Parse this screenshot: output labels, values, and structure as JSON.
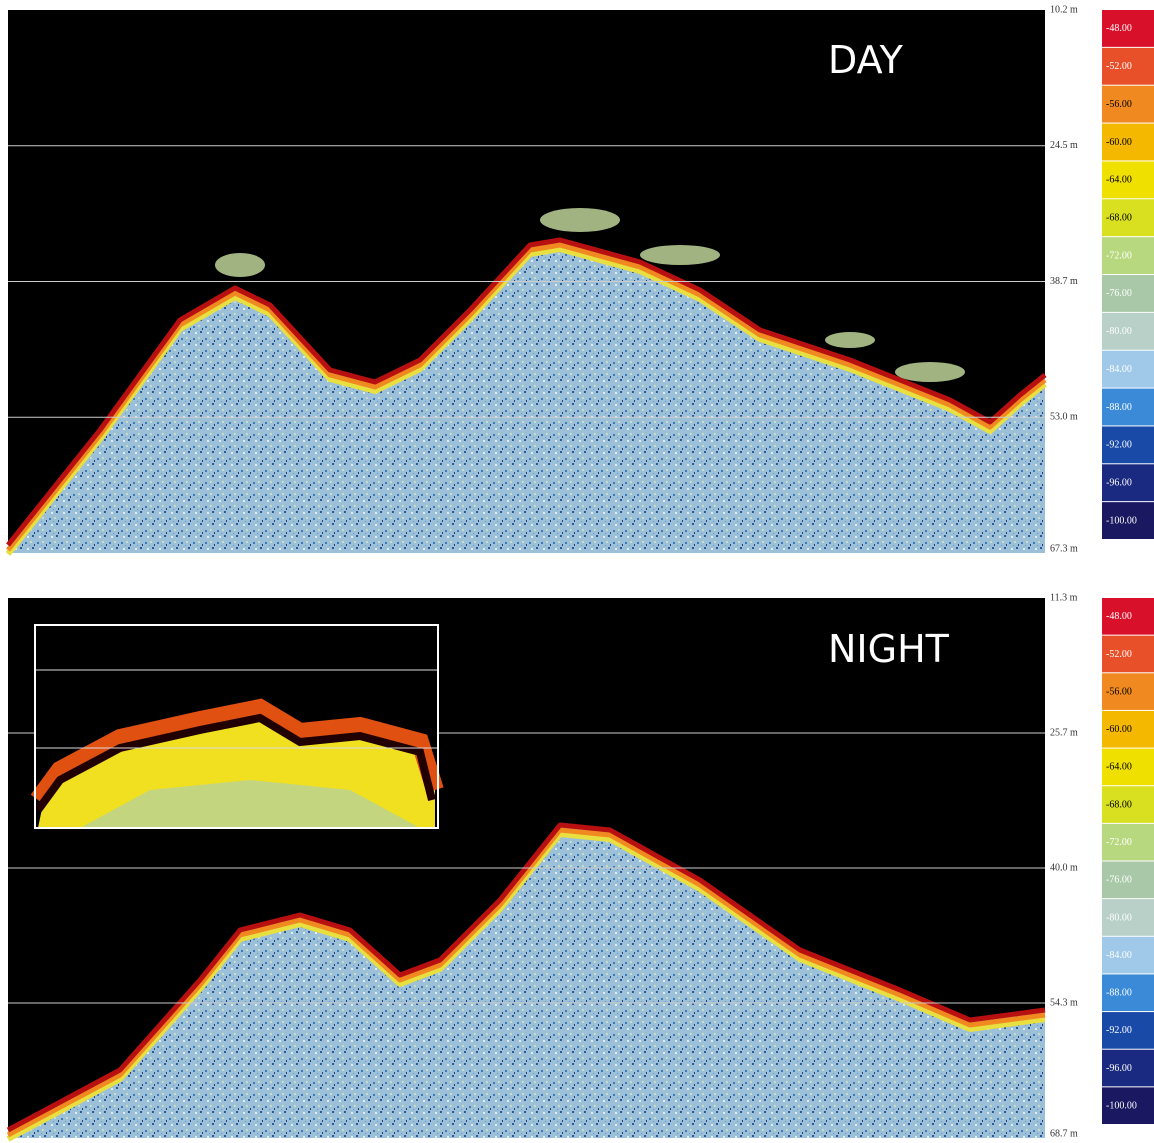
{
  "panels": [
    {
      "label": "DAY",
      "depth_labels": [
        "10.2 m",
        "24.5 m",
        "38.7 m",
        "53.0 m",
        "67.3 m"
      ],
      "scale_labels": [
        "-48.00",
        "-52.00",
        "-56.00",
        "-60.00",
        "-64.00",
        "-68.00",
        "-72.00",
        "-76.00",
        "-80.00",
        "-84.00",
        "-88.00",
        "-92.00",
        "-96.00",
        "-100.00"
      ]
    },
    {
      "label": "NIGHT",
      "depth_labels": [
        "11.3 m",
        "25.7 m",
        "40.0 m",
        "54.3 m",
        "68.7 m"
      ],
      "scale_labels": [
        "-48.00",
        "-52.00",
        "-56.00",
        "-60.00",
        "-64.00",
        "-68.00",
        "-72.00",
        "-76.00",
        "-80.00",
        "-84.00",
        "-88.00",
        "-92.00",
        "-96.00",
        "-100.00"
      ]
    }
  ]
}
